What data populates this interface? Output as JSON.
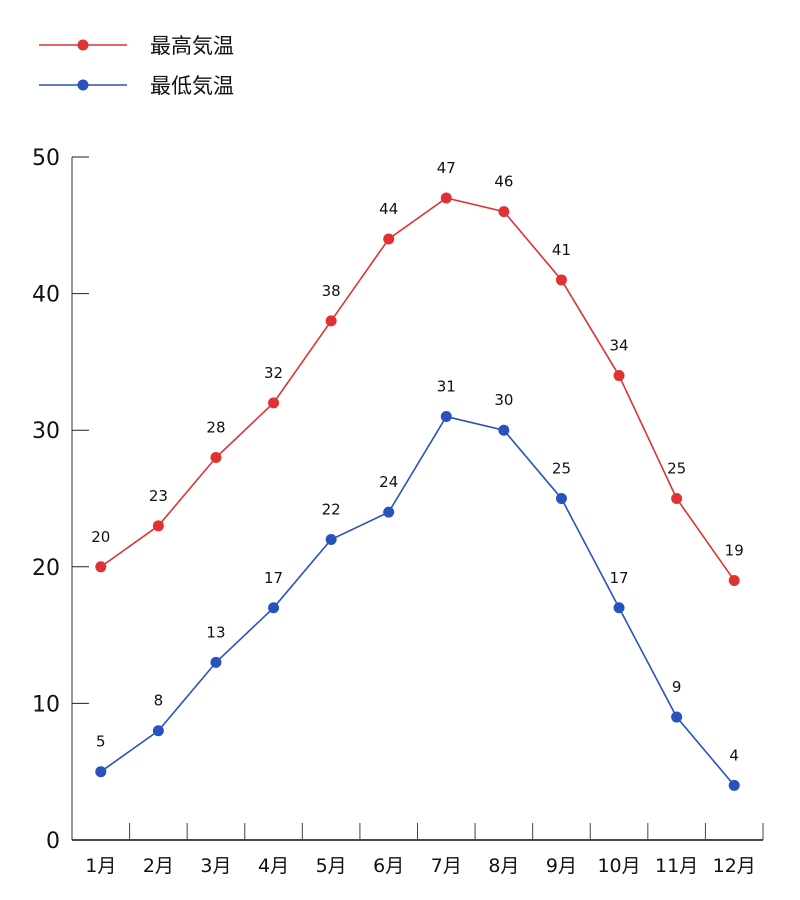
{
  "chart_data": {
    "type": "line",
    "title": "",
    "xlabel": "",
    "ylabel": "",
    "categories": [
      "1月",
      "2月",
      "3月",
      "4月",
      "5月",
      "6月",
      "7月",
      "8月",
      "9月",
      "10月",
      "11月",
      "12月"
    ],
    "series": [
      {
        "name": "最高気温",
        "color": "#e03232",
        "values": [
          20,
          23,
          28,
          32,
          38,
          44,
          47,
          46,
          41,
          34,
          25,
          19
        ]
      },
      {
        "name": "最低気温",
        "color": "#2a52be",
        "values": [
          5,
          8,
          13,
          17,
          22,
          24,
          31,
          30,
          25,
          17,
          9,
          4
        ]
      }
    ],
    "ylim": [
      0,
      50
    ],
    "yticks": [
      0,
      10,
      20,
      30,
      40,
      50
    ],
    "grid": false,
    "legend_position": "top-left",
    "data_labels": true
  },
  "legend": {
    "items": [
      {
        "label": "最高気温",
        "color": "#e03232"
      },
      {
        "label": "最低気温",
        "color": "#2a52be"
      }
    ]
  }
}
